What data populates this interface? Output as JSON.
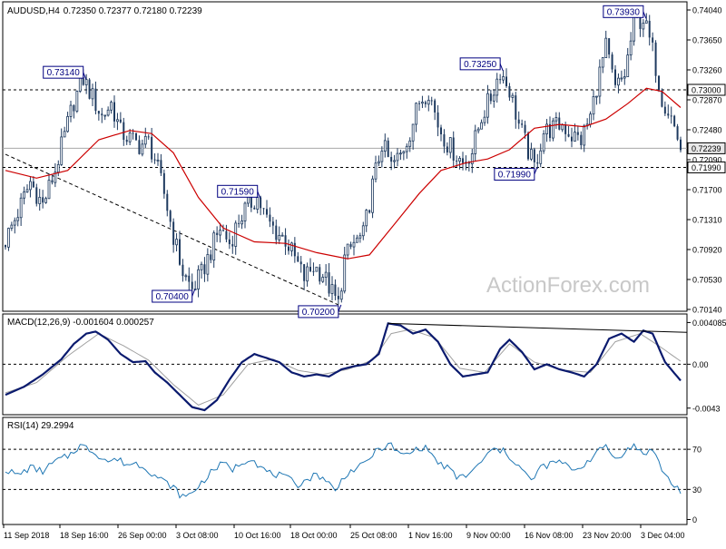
{
  "header": {
    "symbol_tf": "AUDUSD,H4",
    "ohlc": "0.72350 0.72377 0.72180 0.72239"
  },
  "watermark": "ActionForex.com",
  "colors": {
    "bull": "#1e3a5f",
    "bear": "#1e3a5f",
    "ma": "#cc0000",
    "macd_line": "#0a1a6e",
    "signal_line": "#a0a0a0",
    "rsi_line": "#1f77b4",
    "label_border": "#000080",
    "last_price_bg": "#e8e8e8"
  },
  "chart_data": [
    {
      "type": "candlestick",
      "title": "AUDUSD,H4",
      "ylim": [
        0.7014,
        0.7404
      ],
      "y_ticks": [
        "0.74040",
        "0.73650",
        "0.73260",
        "0.72870",
        "0.72480",
        "0.72090",
        "0.71700",
        "0.71310",
        "0.70920",
        "0.70530",
        "0.70140"
      ],
      "x_ticks": [
        "11 Sep 2018",
        "18 Sep 16:00",
        "26 Sep 00:00",
        "3 Oct 08:00",
        "10 Oct 16:00",
        "18 Oct 00:00",
        "25 Oct 08:00",
        "1 Nov 16:00",
        "9 Nov 00:00",
        "16 Nov 08:00",
        "23 Nov 20:00",
        "3 Dec 04:00"
      ],
      "close_path": [
        [
          0,
          0.7104
        ],
        [
          4,
          0.714
        ],
        [
          8,
          0.718
        ],
        [
          12,
          0.715
        ],
        [
          16,
          0.7195
        ],
        [
          19,
          0.724
        ],
        [
          22,
          0.7285
        ],
        [
          25,
          0.7314
        ],
        [
          28,
          0.729
        ],
        [
          31,
          0.7265
        ],
        [
          34,
          0.7282
        ],
        [
          37,
          0.7245
        ],
        [
          40,
          0.7236
        ],
        [
          43,
          0.7228
        ],
        [
          46,
          0.7232
        ],
        [
          48,
          0.721
        ],
        [
          51,
          0.7165
        ],
        [
          54,
          0.711
        ],
        [
          57,
          0.7062
        ],
        [
          60,
          0.704
        ],
        [
          63,
          0.706
        ],
        [
          66,
          0.709
        ],
        [
          69,
          0.712
        ],
        [
          72,
          0.71
        ],
        [
          75,
          0.713
        ],
        [
          78,
          0.715
        ],
        [
          81,
          0.7159
        ],
        [
          84,
          0.713
        ],
        [
          87,
          0.7115
        ],
        [
          90,
          0.7105
        ],
        [
          93,
          0.708
        ],
        [
          96,
          0.7055
        ],
        [
          99,
          0.707
        ],
        [
          102,
          0.706
        ],
        [
          105,
          0.7035
        ],
        [
          107,
          0.702
        ],
        [
          109,
          0.708
        ],
        [
          112,
          0.71
        ],
        [
          115,
          0.711
        ],
        [
          118,
          0.7175
        ],
        [
          121,
          0.723
        ],
        [
          124,
          0.72
        ],
        [
          127,
          0.7215
        ],
        [
          130,
          0.7245
        ],
        [
          133,
          0.7285
        ],
        [
          136,
          0.73
        ],
        [
          139,
          0.7255
        ],
        [
          142,
          0.723
        ],
        [
          145,
          0.7215
        ],
        [
          147,
          0.7205
        ],
        [
          150,
          0.722
        ],
        [
          153,
          0.7265
        ],
        [
          156,
          0.729
        ],
        [
          159,
          0.7325
        ],
        [
          162,
          0.73
        ],
        [
          165,
          0.7255
        ],
        [
          168,
          0.722
        ],
        [
          170,
          0.7199
        ],
        [
          173,
          0.7245
        ],
        [
          176,
          0.725
        ],
        [
          179,
          0.7255
        ],
        [
          182,
          0.724
        ],
        [
          185,
          0.7235
        ],
        [
          188,
          0.7265
        ],
        [
          190,
          0.7305
        ],
        [
          193,
          0.7355
        ],
        [
          196,
          0.73
        ],
        [
          199,
          0.732
        ],
        [
          202,
          0.7385
        ],
        [
          205,
          0.7393
        ],
        [
          208,
          0.735
        ],
        [
          211,
          0.729
        ],
        [
          214,
          0.7265
        ],
        [
          217,
          0.7224
        ]
      ],
      "ma_path": [
        [
          0,
          0.7195
        ],
        [
          10,
          0.7185
        ],
        [
          20,
          0.7195
        ],
        [
          30,
          0.7235
        ],
        [
          40,
          0.7247
        ],
        [
          47,
          0.7243
        ],
        [
          54,
          0.7218
        ],
        [
          62,
          0.716
        ],
        [
          70,
          0.712
        ],
        [
          80,
          0.7102
        ],
        [
          90,
          0.71
        ],
        [
          100,
          0.7088
        ],
        [
          110,
          0.708
        ],
        [
          117,
          0.7085
        ],
        [
          125,
          0.7125
        ],
        [
          133,
          0.7165
        ],
        [
          140,
          0.7195
        ],
        [
          148,
          0.7205
        ],
        [
          155,
          0.721
        ],
        [
          162,
          0.7222
        ],
        [
          170,
          0.725
        ],
        [
          178,
          0.7255
        ],
        [
          186,
          0.7252
        ],
        [
          193,
          0.7262
        ],
        [
          200,
          0.7282
        ],
        [
          206,
          0.7302
        ],
        [
          211,
          0.7298
        ],
        [
          217,
          0.7277
        ]
      ],
      "hlines": [
        0.73,
        0.7199
      ],
      "last_price": 0.72239,
      "last_price_label": "0.72239",
      "level_labels": [
        {
          "text": "0.73000",
          "value": 0.73
        },
        {
          "text": "0.71990",
          "value": 0.7199
        }
      ],
      "callouts": [
        {
          "text": "0.73140",
          "bar": 25,
          "value": 0.7314,
          "side": "left",
          "pos": "above"
        },
        {
          "text": "0.71590",
          "bar": 81,
          "value": 0.7159,
          "side": "left",
          "pos": "above"
        },
        {
          "text": "0.70400",
          "bar": 60,
          "value": 0.704,
          "side": "left",
          "pos": "below"
        },
        {
          "text": "0.70200",
          "bar": 107,
          "value": 0.702,
          "side": "left",
          "pos": "below"
        },
        {
          "text": "0.73250",
          "bar": 159,
          "value": 0.7325,
          "side": "left",
          "pos": "above"
        },
        {
          "text": "0.71990",
          "bar": 170,
          "value": 0.7199,
          "side": "right",
          "pos": "below"
        },
        {
          "text": "0.73930",
          "bar": 205,
          "value": 0.7393,
          "side": "left",
          "pos": "above"
        }
      ],
      "trendline": [
        [
          0,
          0.7216
        ],
        [
          107,
          0.702
        ]
      ]
    },
    {
      "type": "line",
      "title": "MACD(12,26,9) -0.001604 0.000257",
      "ylim": [
        -0.0045,
        0.0043
      ],
      "y_ticks": [
        "0.004085",
        "0.00",
        "-0.0043"
      ],
      "zero_line": 0,
      "series": [
        {
          "role": "macd",
          "values": [
            [
              0,
              -0.003
            ],
            [
              6,
              -0.0022
            ],
            [
              12,
              -0.001
            ],
            [
              18,
              0.0005
            ],
            [
              22,
              0.002
            ],
            [
              26,
              0.003
            ],
            [
              29,
              0.0032
            ],
            [
              33,
              0.0024
            ],
            [
              37,
              0.001
            ],
            [
              41,
              0.0002
            ],
            [
              45,
              0.0003
            ],
            [
              48,
              -0.0008
            ],
            [
              52,
              -0.0018
            ],
            [
              56,
              -0.003
            ],
            [
              60,
              -0.0042
            ],
            [
              64,
              -0.0045
            ],
            [
              68,
              -0.0035
            ],
            [
              72,
              -0.0015
            ],
            [
              76,
              0.0002
            ],
            [
              80,
              0.001
            ],
            [
              84,
              0.0006
            ],
            [
              88,
              0.0002
            ],
            [
              92,
              -0.0008
            ],
            [
              96,
              -0.0012
            ],
            [
              100,
              -0.001
            ],
            [
              104,
              -0.0012
            ],
            [
              108,
              -0.0005
            ],
            [
              112,
              -0.0002
            ],
            [
              116,
              0.0
            ],
            [
              120,
              0.001
            ],
            [
              123,
              0.004
            ],
            [
              127,
              0.0038
            ],
            [
              131,
              0.003
            ],
            [
              135,
              0.0034
            ],
            [
              139,
              0.0022
            ],
            [
              143,
              0.0
            ],
            [
              147,
              -0.0012
            ],
            [
              151,
              -0.001
            ],
            [
              155,
              -0.0008
            ],
            [
              159,
              0.0015
            ],
            [
              162,
              0.0024
            ],
            [
              166,
              0.0012
            ],
            [
              170,
              -0.0005
            ],
            [
              174,
              0.0
            ],
            [
              178,
              -0.0005
            ],
            [
              182,
              -0.0008
            ],
            [
              186,
              -0.0012
            ],
            [
              190,
              0.0
            ],
            [
              194,
              0.0025
            ],
            [
              198,
              0.003
            ],
            [
              202,
              0.0022
            ],
            [
              205,
              0.0033
            ],
            [
              208,
              0.003
            ],
            [
              212,
              0.0002
            ],
            [
              217,
              -0.0016
            ]
          ]
        },
        {
          "role": "signal",
          "values": [
            [
              0,
              -0.0028
            ],
            [
              10,
              -0.0018
            ],
            [
              20,
              0.0008
            ],
            [
              30,
              0.003
            ],
            [
              38,
              0.0018
            ],
            [
              46,
              0.0004
            ],
            [
              54,
              -0.002
            ],
            [
              62,
              -0.004
            ],
            [
              70,
              -0.003
            ],
            [
              78,
              0.0
            ],
            [
              86,
              0.0005
            ],
            [
              94,
              -0.0006
            ],
            [
              102,
              -0.001
            ],
            [
              110,
              -0.0005
            ],
            [
              118,
              0.0004
            ],
            [
              124,
              0.003
            ],
            [
              130,
              0.0034
            ],
            [
              138,
              0.0026
            ],
            [
              146,
              -0.0004
            ],
            [
              154,
              -0.0008
            ],
            [
              162,
              0.002
            ],
            [
              170,
              0.0002
            ],
            [
              180,
              -0.0006
            ],
            [
              188,
              -0.0008
            ],
            [
              196,
              0.0022
            ],
            [
              204,
              0.003
            ],
            [
              210,
              0.0018
            ],
            [
              217,
              0.0003
            ]
          ]
        }
      ],
      "trendline": [
        [
          123,
          0.004
        ],
        [
          217,
          0.0033
        ]
      ]
    },
    {
      "type": "line",
      "title": "RSI(14) 29.2994",
      "ylim": [
        -5,
        100
      ],
      "y_ticks": [
        "70",
        "30",
        "0"
      ],
      "levels": [
        70,
        30
      ],
      "series": [
        {
          "role": "rsi",
          "values": [
            [
              0,
              50
            ],
            [
              4,
              44
            ],
            [
              8,
              52
            ],
            [
              12,
              48
            ],
            [
              16,
              58
            ],
            [
              20,
              63
            ],
            [
              24,
              74
            ],
            [
              27,
              70
            ],
            [
              30,
              64
            ],
            [
              33,
              58
            ],
            [
              36,
              60
            ],
            [
              39,
              55
            ],
            [
              42,
              56
            ],
            [
              45,
              52
            ],
            [
              48,
              44
            ],
            [
              51,
              38
            ],
            [
              54,
              32
            ],
            [
              56,
              25
            ],
            [
              58,
              22
            ],
            [
              61,
              30
            ],
            [
              64,
              40
            ],
            [
              67,
              50
            ],
            [
              70,
              56
            ],
            [
              73,
              50
            ],
            [
              76,
              57
            ],
            [
              79,
              62
            ],
            [
              82,
              52
            ],
            [
              85,
              46
            ],
            [
              88,
              44
            ],
            [
              91,
              40
            ],
            [
              94,
              35
            ],
            [
              97,
              40
            ],
            [
              100,
              45
            ],
            [
              103,
              40
            ],
            [
              106,
              28
            ],
            [
              109,
              44
            ],
            [
              112,
              50
            ],
            [
              115,
              54
            ],
            [
              118,
              65
            ],
            [
              121,
              72
            ],
            [
              124,
              74
            ],
            [
              127,
              64
            ],
            [
              130,
              66
            ],
            [
              133,
              72
            ],
            [
              136,
              70
            ],
            [
              139,
              56
            ],
            [
              142,
              52
            ],
            [
              145,
              42
            ],
            [
              148,
              44
            ],
            [
              151,
              50
            ],
            [
              154,
              62
            ],
            [
              157,
              70
            ],
            [
              160,
              68
            ],
            [
              163,
              60
            ],
            [
              166,
              50
            ],
            [
              169,
              38
            ],
            [
              172,
              52
            ],
            [
              175,
              55
            ],
            [
              178,
              58
            ],
            [
              181,
              52
            ],
            [
              184,
              50
            ],
            [
              187,
              58
            ],
            [
              190,
              66
            ],
            [
              193,
              74
            ],
            [
              196,
              60
            ],
            [
              199,
              68
            ],
            [
              202,
              73
            ],
            [
              205,
              66
            ],
            [
              208,
              70
            ],
            [
              211,
              50
            ],
            [
              214,
              36
            ],
            [
              217,
              29
            ]
          ]
        }
      ]
    }
  ]
}
